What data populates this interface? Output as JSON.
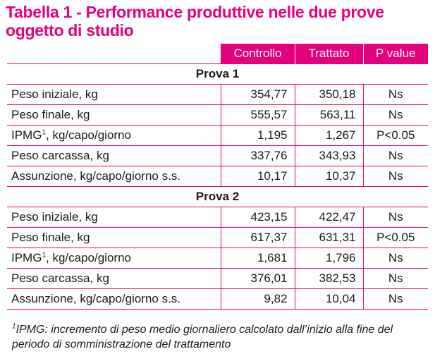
{
  "title": "Tabella 1 - Performance produttive nelle due prove oggetto di studio",
  "header": {
    "col1": "Controllo",
    "col2": "Trattato",
    "col3": "P value"
  },
  "prova1": {
    "label": "Prova 1",
    "rows": [
      {
        "label": "Peso iniziale, kg",
        "controllo": "354,77",
        "trattato": "350,18",
        "p": "Ns"
      },
      {
        "label_pre": "IPMG",
        "label_sup": "1",
        "label_post": ", kg/capo/giorno",
        "controllo": "1,195",
        "trattato": "1,267",
        "p": "P<0.05"
      },
      {
        "label": "Peso finale, kg",
        "controllo": "555,57",
        "trattato": "563,11",
        "p": "Ns"
      },
      {
        "label": "Peso carcassa, kg",
        "controllo": "337,76",
        "trattato": "343,93",
        "p": "Ns"
      },
      {
        "label": "Assunzione, kg/capo/giorno s.s.",
        "controllo": "10,17",
        "trattato": "10,37",
        "p": "Ns"
      }
    ]
  },
  "prova2": {
    "label": "Prova 2",
    "rows": [
      {
        "label": "Peso iniziale, kg",
        "controllo": "423,15",
        "trattato": "422,47",
        "p": "Ns"
      },
      {
        "label": "Peso finale, kg",
        "controllo": "617,37",
        "trattato": "631,31",
        "p": "P<0.05"
      },
      {
        "label_pre": "IPMG",
        "label_sup": "1",
        "label_post": ", kg/capo/giorno",
        "controllo": "1,681",
        "trattato": "1,796",
        "p": "Ns"
      },
      {
        "label": "Peso carcassa, kg",
        "controllo": "376,01",
        "trattato": "382,53",
        "p": "Ns"
      },
      {
        "label": "Assunzione, kg/capo/giorno s.s.",
        "controllo": "9,82",
        "trattato": "10,04",
        "p": "Ns"
      }
    ]
  },
  "footnote": {
    "sup": "1",
    "text": "IPMG: incremento di peso medio giornaliero calcolato dall’inizio alla fine del periodo di somministrazione del trattamento"
  },
  "colors": {
    "accent": "#e5007e"
  }
}
